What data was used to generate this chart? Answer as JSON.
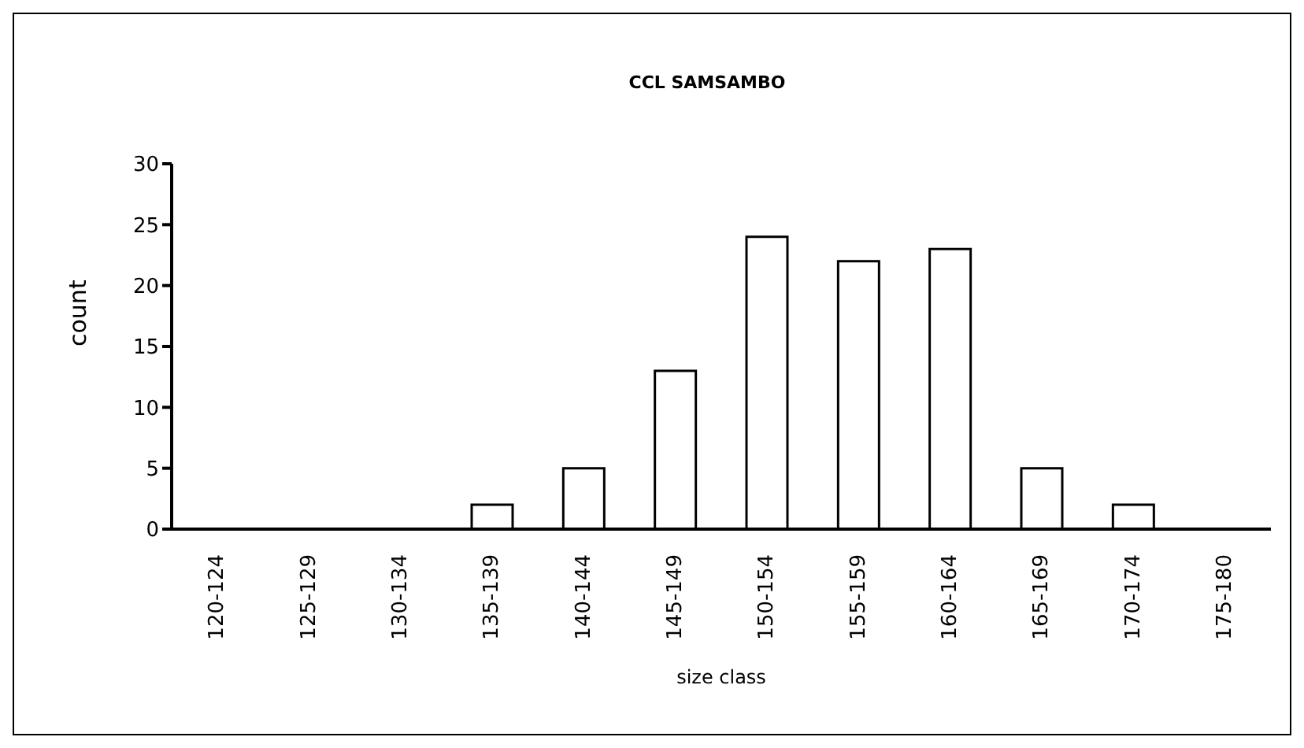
{
  "chart_data": {
    "type": "bar",
    "title": "CCL SAMSAMBO",
    "xlabel": "size class",
    "ylabel": "count",
    "categories": [
      "120-124",
      "125-129",
      "130-134",
      "135-139",
      "140-144",
      "145-149",
      "150-154",
      "155-159",
      "160-164",
      "165-169",
      "170-174",
      "175-180"
    ],
    "values": [
      0,
      0,
      0,
      2,
      5,
      13,
      24,
      22,
      23,
      5,
      2,
      0
    ],
    "color": "#ffffff",
    "ylim": [
      0,
      30
    ],
    "yticks": [
      0,
      5,
      10,
      15,
      20,
      25,
      30
    ],
    "grid": false,
    "legend": false
  }
}
